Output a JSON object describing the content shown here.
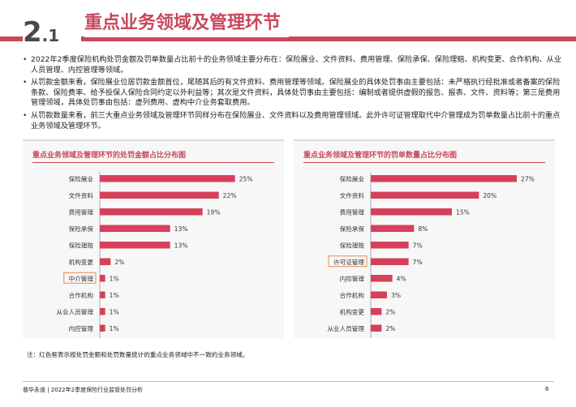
{
  "header": {
    "section_number_main": "2",
    "section_number_sub": ".1",
    "title": "重点业务领域及管理环节"
  },
  "bullets": [
    "2022年2季度保险机构处罚金额及罚单数量占比前十的业务领域主要分布在：保险展业、文件资料、费用管理、保险承保、保险理赔、机构变更、合作机构、从业人员管理、内控管理等领域。",
    "从罚款金额来看，保险展业位居罚款金额首位，尾随其后的有文件资料、费用管理等领域。保险展业的具体处罚事由主要包括：未严格执行经批准或者备案的保险条款、保险费率、给予投保人保险合同约定以外利益等；其次是文件资料，具体处罚事由主要包括：编制或者提供虚假的报告、报表、文件、资料等；第三是费用管理领域，具体处罚事由包括：虚列费用、虚构中介业务套取费用。",
    "从罚款数量来看，前三大重点业务领域及管理环节同样分布在保险展业、文件资料以及费用管理领域。此外许可证管理取代中介管理成为罚单数量占比前十的重点业务领域及管理环节。"
  ],
  "charts": {
    "left_title": "重点业务领域及管理环节的处罚金额占比分布图",
    "right_title": "重点业务领域及管理环节的罚单数量占比分布图"
  },
  "chart_data": [
    {
      "type": "bar",
      "orientation": "horizontal",
      "title": "重点业务领域及管理环节的处罚金额占比分布图",
      "categories": [
        "保险展业",
        "文件资料",
        "费用管理",
        "保险承保",
        "保险理赔",
        "机构变更",
        "中介管理",
        "合作机构",
        "从业人员管理",
        "内控管理"
      ],
      "values": [
        25,
        22,
        19,
        13,
        13,
        2,
        1,
        1,
        1,
        1
      ],
      "value_labels": [
        "25%",
        "22%",
        "19%",
        "13%",
        "13%",
        "2%",
        "1%",
        "1%",
        "1%",
        "1%"
      ],
      "highlighted": [
        "中介管理"
      ],
      "unit": "%",
      "xlim": [
        0,
        30
      ],
      "bar_color": "#d6405a",
      "highlight_border_color": "#e8894a",
      "grid": false
    },
    {
      "type": "bar",
      "orientation": "horizontal",
      "title": "重点业务领域及管理环节的罚单数量占比分布图",
      "categories": [
        "保险展业",
        "文件资料",
        "费用管理",
        "保险承保",
        "保险理赔",
        "许可证管理",
        "内控管理",
        "合作机构",
        "机构变更",
        "从业人员管理"
      ],
      "values": [
        27,
        20,
        15,
        8,
        7,
        7,
        4,
        3,
        2,
        2
      ],
      "value_labels": [
        "27%",
        "20%",
        "15%",
        "8%",
        "7%",
        "7%",
        "4%",
        "3%",
        "2%",
        "2%"
      ],
      "highlighted": [
        "许可证管理"
      ],
      "unit": "%",
      "xlim": [
        0,
        30
      ],
      "bar_color": "#d6405a",
      "highlight_border_color": "#e8894a",
      "grid": false
    }
  ],
  "note": "注：红色框表示按处罚金额和处罚数量统计的重点业务领域中不一致的业务领域。",
  "footer": {
    "text": "普华永道 | 2022年2季度保险行业监管处罚分析",
    "page_number": "6"
  },
  "colors": {
    "accent": "#c9475b",
    "bar": "#d6405a",
    "highlight_border": "#e8894a"
  }
}
